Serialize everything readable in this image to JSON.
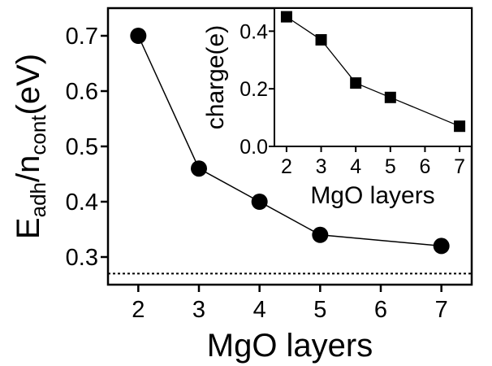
{
  "chart_data": [
    {
      "id": "main",
      "type": "scatter",
      "x": [
        2,
        3,
        4,
        5,
        7
      ],
      "y": [
        0.7,
        0.46,
        0.4,
        0.34,
        0.32
      ],
      "xticks": [
        2,
        3,
        4,
        5,
        6,
        7
      ],
      "xtick_labels": [
        "2",
        "3",
        "4",
        "5",
        "6",
        "7"
      ],
      "yticks": [
        0.3,
        0.4,
        0.5,
        0.6,
        0.7
      ],
      "ytick_labels": [
        "0.3",
        "0.4",
        "0.5",
        "0.6",
        "0.7"
      ],
      "xlim": [
        1.5,
        7.5
      ],
      "ylim": [
        0.25,
        0.75
      ],
      "xlabel": "MgO layers",
      "ylabel": {
        "main": "E",
        "sub1": "adh",
        "mid": "/n",
        "sub2": "cont",
        "unit": "(eV)"
      },
      "marker": "circle",
      "connected": true,
      "reference_line": {
        "y": 0.27,
        "style": "dotted"
      },
      "grid": false
    },
    {
      "id": "inset",
      "type": "scatter",
      "x": [
        2,
        3,
        4,
        5,
        7
      ],
      "y": [
        0.45,
        0.37,
        0.22,
        0.17,
        0.07
      ],
      "xticks": [
        2,
        3,
        4,
        5,
        6,
        7
      ],
      "xtick_labels": [
        "2",
        "3",
        "4",
        "5",
        "6",
        "7"
      ],
      "yticks": [
        0.0,
        0.2,
        0.4
      ],
      "ytick_labels": [
        "0.0",
        "0.2",
        "0.4"
      ],
      "xlim": [
        1.65,
        7.35
      ],
      "ylim": [
        0.0,
        0.48
      ],
      "xlabel": "MgO layers",
      "ylabel": "charge(e)",
      "marker": "square",
      "connected": true,
      "grid": false
    }
  ]
}
